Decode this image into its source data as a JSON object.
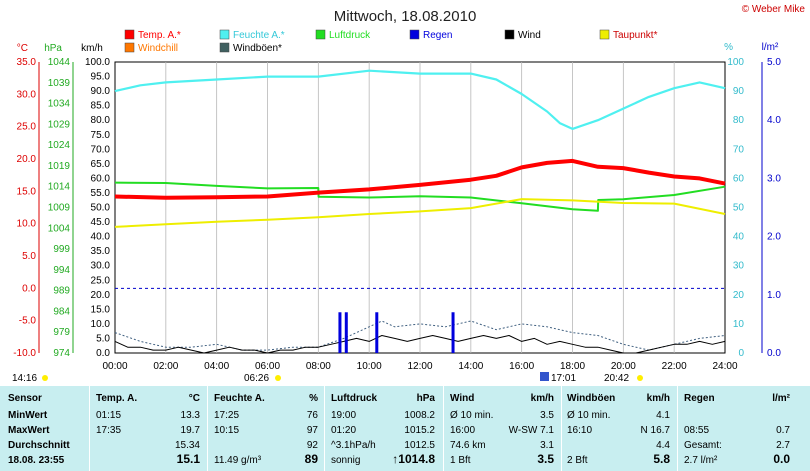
{
  "title": "Mittwoch, 18.08.2010",
  "copyright": "© Weber Mike",
  "legend": [
    {
      "name": "Temp. A.*",
      "color": "#ff0000"
    },
    {
      "name": "Feuchte A.*",
      "color": "#4ff0f0"
    },
    {
      "name": "Luftdruck",
      "color": "#22dd22"
    },
    {
      "name": "Regen",
      "color": "#0000dd"
    },
    {
      "name": "Wind",
      "color": "#000000"
    },
    {
      "name": "Taupunkt*",
      "color": "#eeee00"
    },
    {
      "name": "Windchill",
      "color": "#ff7700"
    },
    {
      "name": "Windböen*",
      "color": "#406060"
    }
  ],
  "axis_units": {
    "temp": "°C",
    "pressure": "hPa",
    "speed": "km/h",
    "humidity": "%",
    "rain": "l/m²"
  },
  "markers": {
    "left_time": "14:16",
    "sunrise": "06:26",
    "rain_start": "17:01",
    "sunset": "20:42"
  },
  "chart_data": {
    "type": "line",
    "xlabel": "",
    "x_ticks": [
      "00:00",
      "02:00",
      "04:00",
      "06:00",
      "08:00",
      "10:00",
      "12:00",
      "14:00",
      "16:00",
      "18:00",
      "20:00",
      "22:00",
      "24:00"
    ],
    "axes": {
      "temp_c": {
        "range": [
          -10,
          35
        ],
        "ticks": [
          "35.0",
          "30.0",
          "25.0",
          "20.0",
          "15.0",
          "10.0",
          "5.0",
          "0.0",
          "-5.0",
          "-10.0"
        ]
      },
      "pressure_hpa": {
        "range": [
          974,
          1044
        ],
        "ticks": [
          "1044",
          "1039",
          "1034",
          "1029",
          "1024",
          "1019",
          "1014",
          "1009",
          "1004",
          "999",
          "994",
          "989",
          "984",
          "979",
          "974"
        ]
      },
      "speed_kmh": {
        "range": [
          0,
          100
        ],
        "ticks": [
          "100.0",
          "95.0",
          "90.0",
          "85.0",
          "80.0",
          "75.0",
          "70.0",
          "65.0",
          "60.0",
          "55.0",
          "50.0",
          "45.0",
          "40.0",
          "35.0",
          "30.0",
          "25.0",
          "20.0",
          "15.0",
          "10.0",
          "5.0",
          "0.0"
        ]
      },
      "humidity_pct": {
        "range": [
          0,
          100
        ],
        "ticks": [
          "100",
          "90",
          "80",
          "70",
          "60",
          "50",
          "40",
          "30",
          "20",
          "10",
          "0"
        ]
      },
      "rain_lm2": {
        "range": [
          0,
          5
        ],
        "ticks": [
          "5.0",
          "4.0",
          "3.0",
          "2.0",
          "1.0",
          "0.0"
        ]
      }
    },
    "series": [
      {
        "name": "Temp. A.*",
        "unit": "°C",
        "x": [
          0,
          2,
          4,
          6,
          8,
          10,
          12,
          14,
          15,
          16,
          17,
          18,
          19,
          20,
          21,
          22,
          23,
          24
        ],
        "values": [
          14.2,
          14.0,
          14.1,
          14.2,
          14.8,
          15.3,
          16.0,
          16.8,
          17.4,
          18.7,
          19.4,
          19.7,
          18.8,
          18.6,
          17.9,
          17.3,
          17.0,
          16.2
        ]
      },
      {
        "name": "Feuchte A.*",
        "unit": "%",
        "x": [
          0,
          1,
          2,
          4,
          6,
          8,
          10,
          12,
          14,
          15,
          16,
          17,
          17.5,
          18,
          19,
          20,
          21,
          22,
          23,
          24
        ],
        "values": [
          90,
          92,
          93,
          94,
          95,
          95,
          97,
          96,
          96,
          94,
          89,
          83,
          79,
          77,
          80,
          84,
          88,
          91,
          93,
          91
        ]
      },
      {
        "name": "Luftdruck",
        "unit": "hPa",
        "x": [
          0,
          2,
          4,
          6,
          8,
          8.01,
          10,
          12,
          14,
          16,
          18,
          19,
          19.01,
          20,
          22,
          24
        ],
        "values": [
          1015.0,
          1014.9,
          1014.2,
          1013.6,
          1013.7,
          1011.6,
          1011.4,
          1011.7,
          1011.4,
          1010.0,
          1008.6,
          1008.2,
          1010.8,
          1011.0,
          1012.0,
          1014.0
        ]
      },
      {
        "name": "Taupunkt*",
        "unit": "°C",
        "x": [
          0,
          2,
          4,
          6,
          8,
          10,
          12,
          14,
          16,
          18,
          20,
          22,
          24
        ],
        "values": [
          9.5,
          9.9,
          10.3,
          10.6,
          11.0,
          11.5,
          11.9,
          12.4,
          13.8,
          13.6,
          13.2,
          13.1,
          11.5
        ]
      },
      {
        "name": "Wind",
        "unit": "km/h",
        "x": [
          0,
          0.5,
          1,
          1.5,
          2,
          2.5,
          3,
          3.5,
          4,
          4.5,
          5,
          5.5,
          6,
          6.5,
          7,
          7.5,
          8,
          8.5,
          9,
          9.5,
          10,
          10.5,
          11,
          11.5,
          12,
          12.5,
          13,
          13.5,
          14,
          14.5,
          15,
          15.5,
          16,
          16.5,
          17,
          17.5,
          18,
          18.5,
          19,
          19.5,
          20,
          20.5,
          21,
          21.5,
          22,
          22.5,
          23,
          23.5,
          24
        ],
        "values": [
          4,
          2,
          2,
          1,
          1,
          2,
          1,
          0,
          1,
          2,
          1,
          1,
          0,
          1,
          1,
          2,
          2,
          3,
          4,
          5,
          4,
          6,
          5,
          4,
          5,
          6,
          5,
          4,
          5,
          6,
          5,
          6,
          4,
          5,
          3,
          4,
          3,
          2,
          2,
          1,
          0,
          0,
          1,
          2,
          3,
          3,
          4,
          3,
          4
        ]
      },
      {
        "name": "Windböen*",
        "unit": "km/h",
        "x": [
          0,
          1,
          2,
          3,
          4,
          5,
          6,
          7,
          8,
          9,
          10,
          10.5,
          11,
          12,
          13,
          14,
          15,
          16,
          17,
          18,
          19,
          20,
          21,
          22,
          23,
          24
        ],
        "values": [
          7,
          4,
          2,
          2,
          3,
          1,
          1,
          2,
          2,
          5,
          9,
          11,
          9,
          10,
          9,
          11,
          8,
          10,
          9,
          7,
          6,
          3,
          1,
          3,
          5,
          6
        ]
      }
    ],
    "rain_events": [
      {
        "x": 8.85,
        "value": 0.7
      },
      {
        "x": 9.1,
        "value": 0.7
      },
      {
        "x": 10.3,
        "value": 0.7
      },
      {
        "x": 13.3,
        "value": 0.7
      }
    ],
    "reference_lines": [
      {
        "axis": "temp_c",
        "value": 0,
        "style": "dashed",
        "color": "#0000cc"
      }
    ]
  },
  "table": {
    "headers": {
      "sensor": "Sensor",
      "temp": "Temp. A.",
      "temp_unit": "°C",
      "hum": "Feuchte A.",
      "hum_unit": "%",
      "press": "Luftdruck",
      "press_unit": "hPa",
      "wind": "Wind",
      "wind_unit": "km/h",
      "gust": "Windböen",
      "gust_unit": "km/h",
      "rain": "Regen",
      "rain_unit": "l/m²"
    },
    "row_labels": [
      "MinWert",
      "MaxWert",
      "Durchschnitt",
      "18.08. 23:55"
    ],
    "temp": [
      [
        "01:15",
        "13.3"
      ],
      [
        "17:35",
        "19.7"
      ],
      [
        "",
        "15.34"
      ],
      [
        "",
        "15.1"
      ]
    ],
    "hum": [
      [
        "17:25",
        "76"
      ],
      [
        "10:15",
        "97"
      ],
      [
        "",
        "92"
      ],
      [
        "11.49 g/m³",
        "89"
      ]
    ],
    "press": [
      [
        "19:00",
        "1008.2"
      ],
      [
        "01:20",
        "1015.2"
      ],
      [
        "^3.1hPa/h",
        "1012.5"
      ],
      [
        "sonnig",
        "↑1014.8"
      ]
    ],
    "wind": [
      [
        "Ø 10 min.",
        "3.5"
      ],
      [
        "16:00",
        "W-SW 7.1"
      ],
      [
        "74.6 km",
        "3.1"
      ],
      [
        "1 Bft",
        "3.5"
      ]
    ],
    "gust": [
      [
        "Ø 10 min.",
        "4.1"
      ],
      [
        "16:10",
        "N 16.7"
      ],
      [
        "",
        "4.4"
      ],
      [
        "2 Bft",
        "5.8"
      ]
    ],
    "rain": [
      [
        "",
        ""
      ],
      [
        "08:55",
        "0.7"
      ],
      [
        "Gesamt:",
        "2.7"
      ],
      [
        "2.7 l/m²",
        "0.0"
      ]
    ]
  }
}
